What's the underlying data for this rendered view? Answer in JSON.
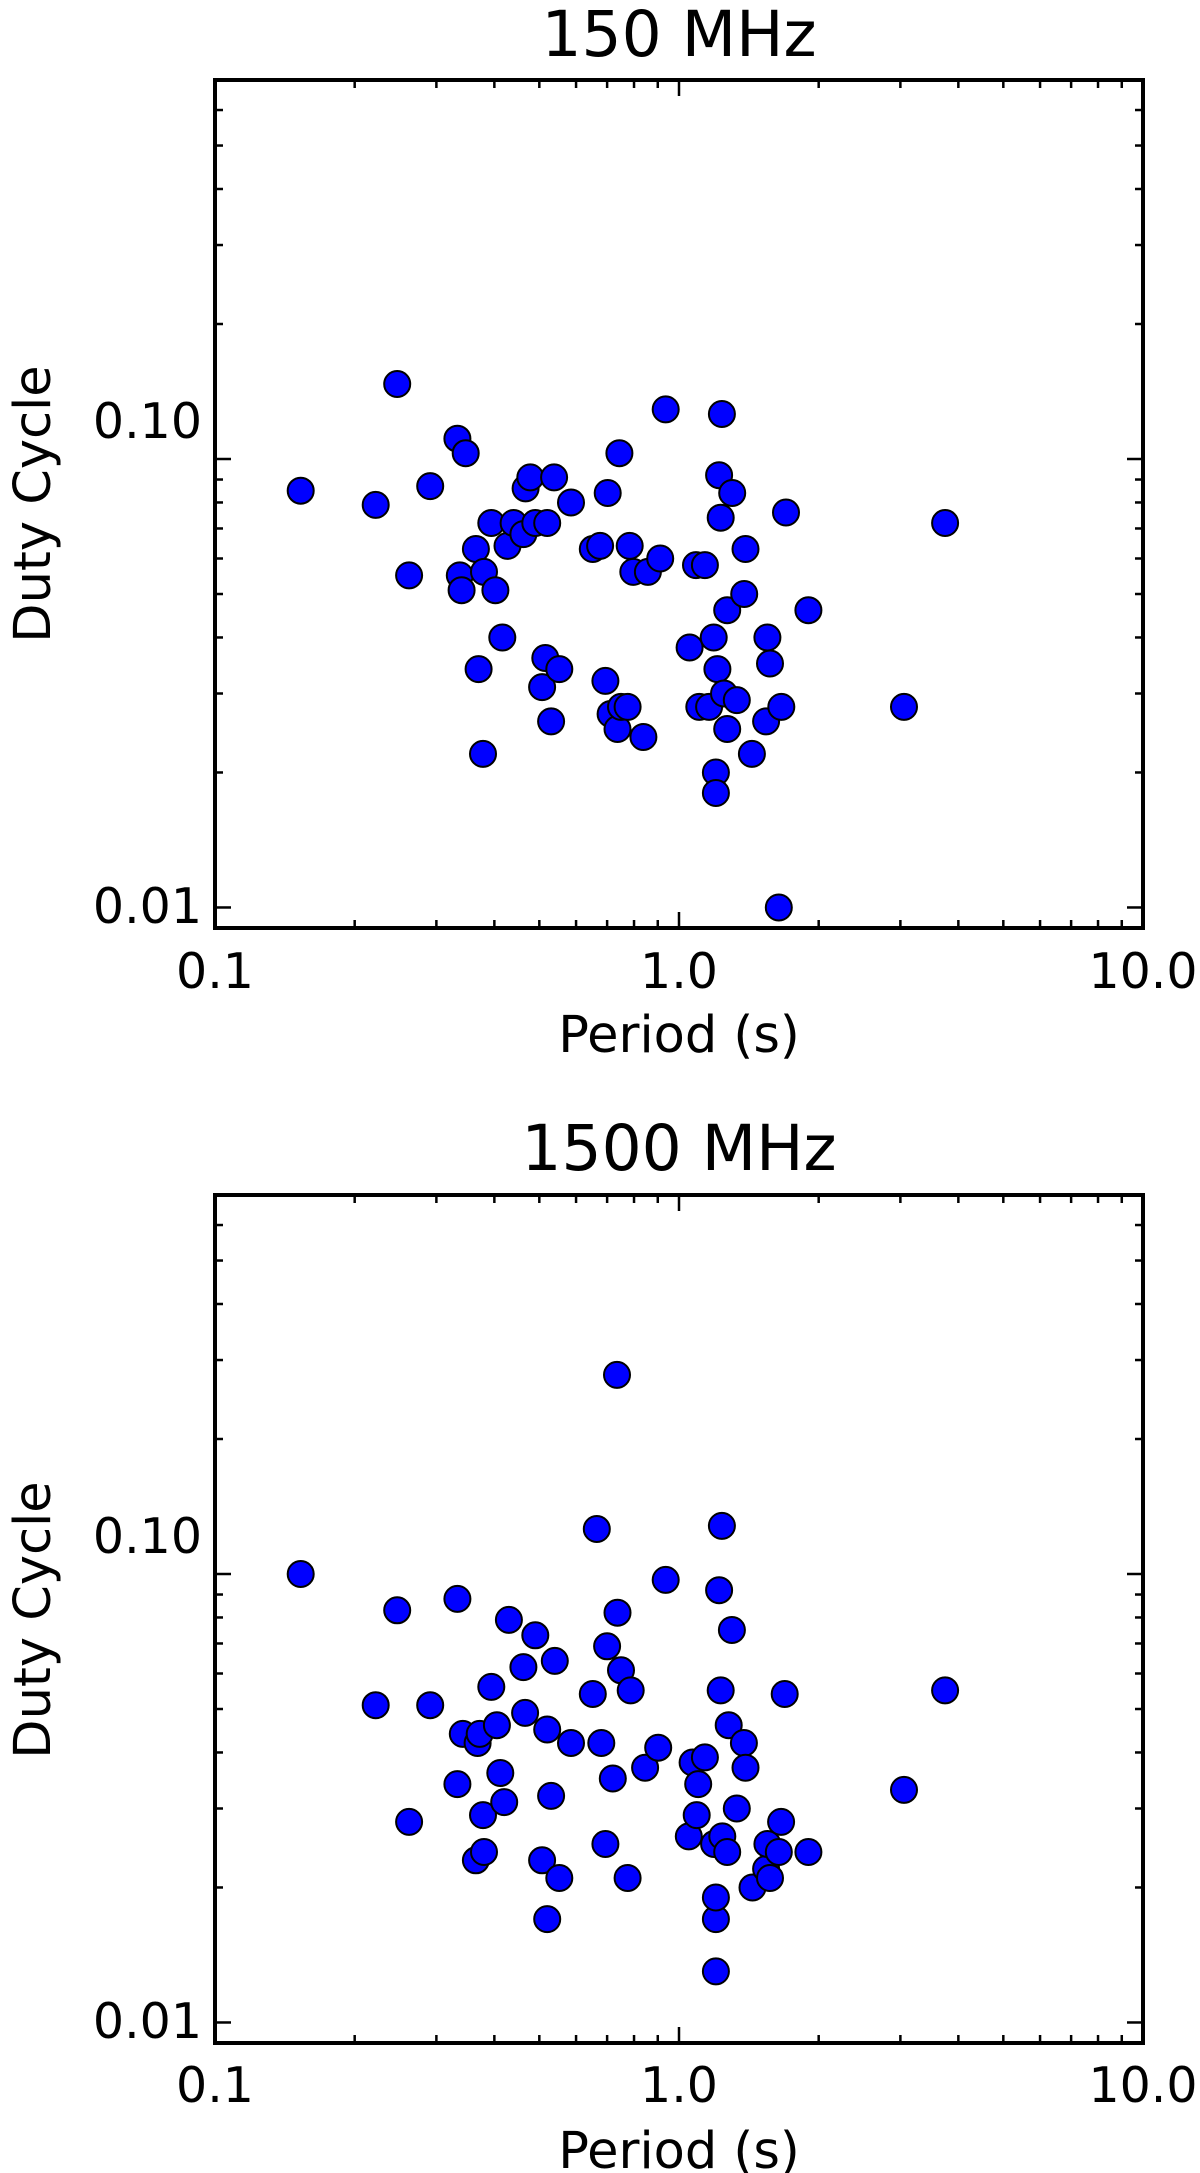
{
  "chart_data": [
    {
      "type": "scatter",
      "title": "150 MHz",
      "xlabel": "Period (s)",
      "ylabel": "Duty Cycle",
      "xscale": "log",
      "yscale": "log",
      "xlim": [
        0.1,
        10.0
      ],
      "ylim": [
        0.009,
        0.7
      ],
      "xticklabels": [
        "0.1",
        "1.0",
        "10.0"
      ],
      "yticklabels": [
        "0.01",
        "0.10"
      ],
      "marker_color": "#0000ff",
      "series": [
        {
          "points": [
            [
              0.153,
              0.085
            ],
            [
              0.222,
              0.079
            ],
            [
              0.247,
              0.147
            ],
            [
              0.262,
              0.055
            ],
            [
              0.291,
              0.087
            ],
            [
              0.333,
              0.111
            ],
            [
              0.347,
              0.103
            ],
            [
              0.337,
              0.055
            ],
            [
              0.34,
              0.051
            ],
            [
              0.365,
              0.063
            ],
            [
              0.37,
              0.034
            ],
            [
              0.38,
              0.056
            ],
            [
              0.378,
              0.022
            ],
            [
              0.394,
              0.072
            ],
            [
              0.402,
              0.051
            ],
            [
              0.416,
              0.04
            ],
            [
              0.427,
              0.064
            ],
            [
              0.44,
              0.072
            ],
            [
              0.462,
              0.068
            ],
            [
              0.467,
              0.086
            ],
            [
              0.478,
              0.091
            ],
            [
              0.49,
              0.072
            ],
            [
              0.507,
              0.031
            ],
            [
              0.515,
              0.036
            ],
            [
              0.52,
              0.072
            ],
            [
              0.53,
              0.026
            ],
            [
              0.538,
              0.091
            ],
            [
              0.552,
              0.034
            ],
            [
              0.585,
              0.08
            ],
            [
              0.652,
              0.063
            ],
            [
              0.676,
              0.064
            ],
            [
              0.694,
              0.032
            ],
            [
              0.702,
              0.084
            ],
            [
              0.712,
              0.027
            ],
            [
              0.737,
              0.025
            ],
            [
              0.744,
              0.103
            ],
            [
              0.75,
              0.028
            ],
            [
              0.775,
              0.028
            ],
            [
              0.783,
              0.064
            ],
            [
              0.797,
              0.056
            ],
            [
              0.838,
              0.024
            ],
            [
              0.857,
              0.056
            ],
            [
              0.911,
              0.06
            ],
            [
              0.936,
              0.129
            ],
            [
              1.054,
              0.038
            ],
            [
              1.088,
              0.058
            ],
            [
              1.106,
              0.028
            ],
            [
              1.137,
              0.058
            ],
            [
              1.161,
              0.028
            ],
            [
              1.188,
              0.04
            ],
            [
              1.201,
              0.02
            ],
            [
              1.201,
              0.018
            ],
            [
              1.21,
              0.034
            ],
            [
              1.22,
              0.092
            ],
            [
              1.23,
              0.074
            ],
            [
              1.237,
              0.126
            ],
            [
              1.25,
              0.03
            ],
            [
              1.27,
              0.025
            ],
            [
              1.27,
              0.046
            ],
            [
              1.302,
              0.084
            ],
            [
              1.332,
              0.029
            ],
            [
              1.382,
              0.05
            ],
            [
              1.391,
              0.063
            ],
            [
              1.436,
              0.022
            ],
            [
              1.541,
              0.026
            ],
            [
              1.551,
              0.04
            ],
            [
              1.571,
              0.035
            ],
            [
              1.641,
              0.01
            ],
            [
              1.661,
              0.028
            ],
            [
              1.701,
              0.076
            ],
            [
              1.901,
              0.046
            ],
            [
              3.055,
              0.028
            ],
            [
              3.745,
              0.072
            ]
          ]
        }
      ]
    },
    {
      "type": "scatter",
      "title": "1500 MHz",
      "xlabel": "Period (s)",
      "ylabel": "Duty Cycle",
      "xscale": "log",
      "yscale": "log",
      "xlim": [
        0.1,
        10.0
      ],
      "ylim": [
        0.009,
        0.7
      ],
      "xticklabels": [
        "0.1",
        "1.0",
        "10.0"
      ],
      "yticklabels": [
        "0.01",
        "0.10"
      ],
      "marker_color": "#0000ff",
      "series": [
        {
          "points": [
            [
              0.153,
              0.1
            ],
            [
              0.222,
              0.051
            ],
            [
              0.247,
              0.083
            ],
            [
              0.262,
              0.028
            ],
            [
              0.291,
              0.051
            ],
            [
              0.333,
              0.088
            ],
            [
              0.333,
              0.034
            ],
            [
              0.342,
              0.044
            ],
            [
              0.365,
              0.023
            ],
            [
              0.368,
              0.042
            ],
            [
              0.372,
              0.044
            ],
            [
              0.378,
              0.029
            ],
            [
              0.38,
              0.024
            ],
            [
              0.394,
              0.056
            ],
            [
              0.405,
              0.046
            ],
            [
              0.412,
              0.036
            ],
            [
              0.42,
              0.031
            ],
            [
              0.43,
              0.079
            ],
            [
              0.462,
              0.062
            ],
            [
              0.466,
              0.049
            ],
            [
              0.49,
              0.073
            ],
            [
              0.507,
              0.023
            ],
            [
              0.52,
              0.017
            ],
            [
              0.52,
              0.045
            ],
            [
              0.53,
              0.032
            ],
            [
              0.54,
              0.064
            ],
            [
              0.552,
              0.021
            ],
            [
              0.585,
              0.042
            ],
            [
              0.652,
              0.054
            ],
            [
              0.665,
              0.126
            ],
            [
              0.68,
              0.042
            ],
            [
              0.694,
              0.025
            ],
            [
              0.7,
              0.069
            ],
            [
              0.72,
              0.035
            ],
            [
              0.735,
              0.278
            ],
            [
              0.737,
              0.082
            ],
            [
              0.75,
              0.061
            ],
            [
              0.775,
              0.021
            ],
            [
              0.787,
              0.055
            ],
            [
              0.845,
              0.037
            ],
            [
              0.902,
              0.041
            ],
            [
              0.936,
              0.097
            ],
            [
              1.05,
              0.026
            ],
            [
              1.07,
              0.038
            ],
            [
              1.092,
              0.029
            ],
            [
              1.1,
              0.034
            ],
            [
              1.137,
              0.039
            ],
            [
              1.19,
              0.025
            ],
            [
              1.201,
              0.013
            ],
            [
              1.201,
              0.017
            ],
            [
              1.201,
              0.019
            ],
            [
              1.22,
              0.092
            ],
            [
              1.23,
              0.055
            ],
            [
              1.237,
              0.128
            ],
            [
              1.24,
              0.026
            ],
            [
              1.27,
              0.024
            ],
            [
              1.28,
              0.046
            ],
            [
              1.3,
              0.075
            ],
            [
              1.332,
              0.03
            ],
            [
              1.38,
              0.042
            ],
            [
              1.391,
              0.037
            ],
            [
              1.44,
              0.02
            ],
            [
              1.541,
              0.022
            ],
            [
              1.551,
              0.025
            ],
            [
              1.571,
              0.021
            ],
            [
              1.641,
              0.024
            ],
            [
              1.66,
              0.028
            ],
            [
              1.69,
              0.054
            ],
            [
              1.901,
              0.024
            ],
            [
              3.055,
              0.033
            ],
            [
              3.745,
              0.055
            ]
          ]
        }
      ]
    }
  ]
}
